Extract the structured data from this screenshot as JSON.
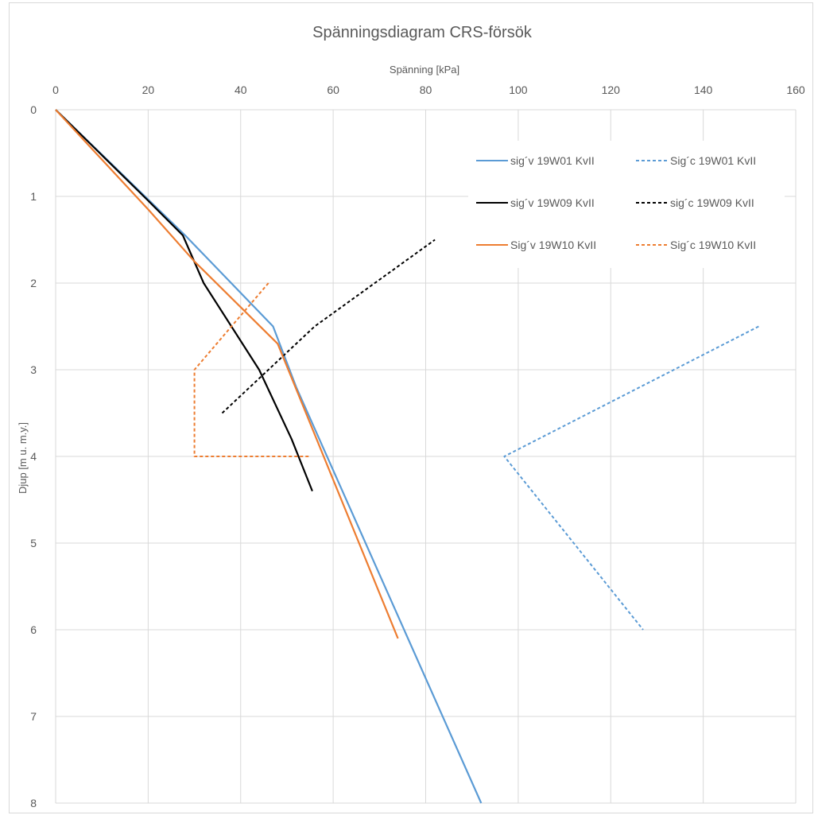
{
  "chart_data": {
    "type": "line",
    "title": "Spänningsdiagram CRS-försök",
    "xlabel": "Spänning [kPa]",
    "ylabel": "Djup [m u. m.y.]",
    "x_axis_position": "top",
    "y_axis_reversed": true,
    "xlim": [
      0,
      160
    ],
    "ylim": [
      0,
      8
    ],
    "x_ticks": [
      "0",
      "20",
      "40",
      "60",
      "80",
      "100",
      "120",
      "140",
      "160"
    ],
    "y_ticks": [
      "0",
      "1",
      "2",
      "3",
      "4",
      "5",
      "6",
      "7",
      "8"
    ],
    "grid": true,
    "legend_position": "top-right",
    "series": [
      {
        "name": "sig´v 19W01 KvII",
        "color": "#5b9bd5",
        "dash": "solid",
        "points": [
          [
            0,
            0
          ],
          [
            28,
            1.45
          ],
          [
            47,
            2.5
          ],
          [
            52,
            3.2
          ],
          [
            92,
            8.0
          ]
        ]
      },
      {
        "name": "Sig´c 19W01 KvII",
        "color": "#5b9bd5",
        "dash": "dashed",
        "points": [
          [
            152,
            2.5
          ],
          [
            97,
            4.0
          ],
          [
            127,
            6.0
          ]
        ]
      },
      {
        "name": "sig´v 19W09 KvII",
        "color": "#000000",
        "dash": "solid",
        "points": [
          [
            0,
            0
          ],
          [
            20,
            1.05
          ],
          [
            27.5,
            1.45
          ],
          [
            32,
            2.0
          ],
          [
            44,
            3.0
          ],
          [
            51,
            3.8
          ],
          [
            55.5,
            4.4
          ]
        ]
      },
      {
        "name": "sig´c 19W09 KvII",
        "color": "#000000",
        "dash": "dashed",
        "points": [
          [
            36,
            3.5
          ],
          [
            56,
            2.5
          ],
          [
            82,
            1.5
          ]
        ]
      },
      {
        "name": "Sig´v 19W10 KvII",
        "color": "#ed7d31",
        "dash": "solid",
        "points": [
          [
            0,
            0
          ],
          [
            20,
            1.15
          ],
          [
            30,
            1.75
          ],
          [
            48,
            2.7
          ],
          [
            74,
            6.1
          ]
        ]
      },
      {
        "name": "Sig´c 19W10 KvII",
        "color": "#ed7d31",
        "dash": "dashed",
        "points": [
          [
            46,
            2.0
          ],
          [
            30,
            3.0
          ],
          [
            30,
            4.0
          ],
          [
            55,
            4.0
          ]
        ]
      }
    ]
  }
}
